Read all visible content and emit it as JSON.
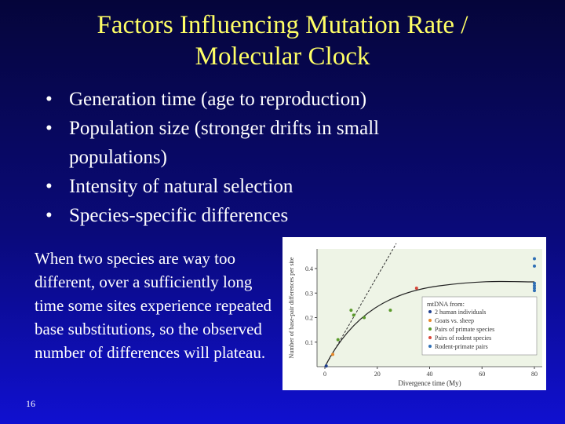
{
  "slide": {
    "title": "Factors Influencing Mutation Rate / Molecular Clock",
    "bullets": [
      "Generation time (age to reproduction)",
      "Population size (stronger drifts in small populations)",
      "Intensity of natural selection",
      "Species-specific differences"
    ],
    "body": "When two species are way too different, over a sufficiently long time some sites experience repeated base substitutions, so the observed number of differences will plateau.",
    "slide_number": "16"
  },
  "chart_data": {
    "type": "scatter",
    "xlabel": "Divergence time (My)",
    "ylabel": "Number of base-pair differences per site",
    "xlim": [
      -3,
      83
    ],
    "ylim": [
      0,
      0.48
    ],
    "xticks": [
      0,
      20,
      40,
      60,
      80
    ],
    "yticks": [
      0.1,
      0.2,
      0.3,
      0.4
    ],
    "legend_title": "mtDNA from:",
    "series": [
      {
        "name": "2 human individuals",
        "color": "#1f3f8f",
        "x": [
          0.5
        ],
        "values": [
          0.003
        ]
      },
      {
        "name": "Goats vs. sheep",
        "color": "#e8892b",
        "x": [
          3
        ],
        "values": [
          0.05
        ]
      },
      {
        "name": "Pairs of primate species",
        "color": "#5a9a2a",
        "x": [
          5,
          10,
          11,
          15,
          25
        ],
        "values": [
          0.11,
          0.23,
          0.21,
          0.2,
          0.23
        ]
      },
      {
        "name": "Pairs of rodent species",
        "color": "#d9483b",
        "x": [
          35
        ],
        "values": [
          0.32
        ]
      },
      {
        "name": "Rodent-primate pairs",
        "color": "#2f6fb5",
        "x": [
          80,
          80,
          80,
          80,
          80,
          80
        ],
        "values": [
          0.44,
          0.41,
          0.34,
          0.33,
          0.32,
          0.31
        ]
      }
    ]
  }
}
